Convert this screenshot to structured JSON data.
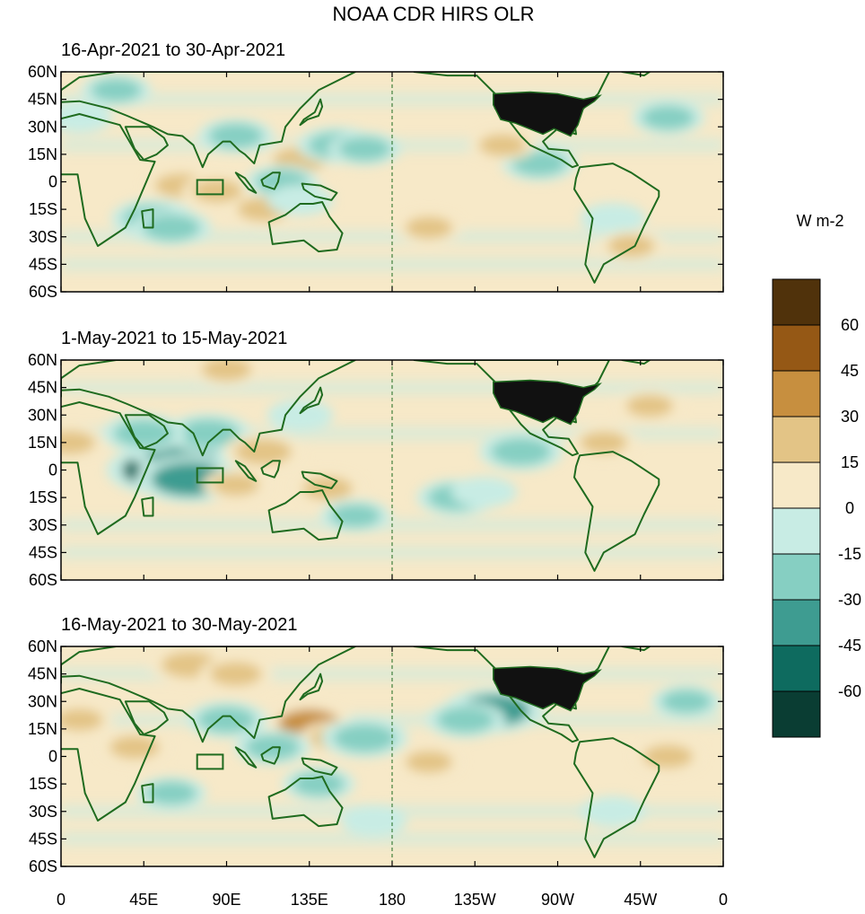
{
  "chart_data": {
    "type": "heatmap",
    "title": "NOAA CDR HIRS OLR",
    "units": "W m-2",
    "colors": {
      "land_outline": "#1f6b1f",
      "usa_fill": "#111111",
      "levels": [
        "#0a3d33",
        "#0e6b5f",
        "#3e9c91",
        "#86cfc2",
        "#c8ece4",
        "#f7e9c8",
        "#e3c486",
        "#c78f3f",
        "#955815",
        "#50320b"
      ]
    },
    "colorbar": {
      "labels": [
        "60",
        "45",
        "30",
        "15",
        "0",
        "-15",
        "-30",
        "-45",
        "-60"
      ]
    },
    "x_axis": {
      "ticks": [
        "0",
        "45E",
        "90E",
        "135E",
        "180",
        "135W",
        "90W",
        "45W",
        "0"
      ],
      "range": [
        0,
        360
      ]
    },
    "y_axis": {
      "ticks": [
        "60N",
        "45N",
        "30N",
        "15N",
        "0",
        "15S",
        "30S",
        "45S",
        "60S"
      ],
      "range": [
        60,
        -60
      ]
    },
    "dateline": 180,
    "panels": [
      {
        "subtitle": "16-Apr-2021 to 30-Apr-2021",
        "anomalies": [
          {
            "lon": 65,
            "lat": -2,
            "value": 20
          },
          {
            "lon": 85,
            "lat": -5,
            "value": 18
          },
          {
            "lon": 110,
            "lat": -15,
            "value": 20
          },
          {
            "lon": 130,
            "lat": 12,
            "value": 22
          },
          {
            "lon": 150,
            "lat": 20,
            "value": -25
          },
          {
            "lon": 165,
            "lat": 18,
            "value": -20
          },
          {
            "lon": 50,
            "lat": -20,
            "value": -28
          },
          {
            "lon": 60,
            "lat": -25,
            "value": -25
          },
          {
            "lon": 95,
            "lat": 25,
            "value": -22
          },
          {
            "lon": 120,
            "lat": 0,
            "value": -20
          },
          {
            "lon": 130,
            "lat": -10,
            "value": -15
          },
          {
            "lon": 260,
            "lat": 10,
            "value": -22
          },
          {
            "lon": 240,
            "lat": 20,
            "value": 15
          },
          {
            "lon": 200,
            "lat": -25,
            "value": 15
          },
          {
            "lon": 330,
            "lat": 35,
            "value": -20
          },
          {
            "lon": 10,
            "lat": 35,
            "value": -15
          },
          {
            "lon": 30,
            "lat": 50,
            "value": -18
          },
          {
            "lon": 300,
            "lat": -20,
            "value": -15
          },
          {
            "lon": 310,
            "lat": -35,
            "value": 15
          }
        ]
      },
      {
        "subtitle": "1-May-2021 to 15-May-2021",
        "anomalies": [
          {
            "lon": 55,
            "lat": 0,
            "value": -48
          },
          {
            "lon": 65,
            "lat": 10,
            "value": -40
          },
          {
            "lon": 70,
            "lat": -5,
            "value": -45
          },
          {
            "lon": 80,
            "lat": 20,
            "value": -30
          },
          {
            "lon": 45,
            "lat": 20,
            "value": -28
          },
          {
            "lon": 5,
            "lat": 15,
            "value": 18
          },
          {
            "lon": 110,
            "lat": 10,
            "value": 25
          },
          {
            "lon": 145,
            "lat": -10,
            "value": 18
          },
          {
            "lon": 95,
            "lat": -8,
            "value": 15
          },
          {
            "lon": 215,
            "lat": -15,
            "value": -25
          },
          {
            "lon": 230,
            "lat": -12,
            "value": -15
          },
          {
            "lon": 250,
            "lat": 10,
            "value": -28
          },
          {
            "lon": 295,
            "lat": 15,
            "value": 15
          },
          {
            "lon": 320,
            "lat": 35,
            "value": 15
          },
          {
            "lon": 160,
            "lat": -25,
            "value": -18
          },
          {
            "lon": 90,
            "lat": 55,
            "value": 18
          },
          {
            "lon": 130,
            "lat": 30,
            "value": -15
          }
        ]
      },
      {
        "subtitle": "16-May-2021 to 30-May-2021",
        "anomalies": [
          {
            "lon": 70,
            "lat": 50,
            "value": 25
          },
          {
            "lon": 95,
            "lat": 45,
            "value": 20
          },
          {
            "lon": 135,
            "lat": 18,
            "value": 30
          },
          {
            "lon": 150,
            "lat": 10,
            "value": 22
          },
          {
            "lon": 40,
            "lat": 5,
            "value": 18
          },
          {
            "lon": 10,
            "lat": 20,
            "value": 15
          },
          {
            "lon": 90,
            "lat": 20,
            "value": -25
          },
          {
            "lon": 115,
            "lat": 5,
            "value": -22
          },
          {
            "lon": 165,
            "lat": 10,
            "value": -30
          },
          {
            "lon": 235,
            "lat": 25,
            "value": -40
          },
          {
            "lon": 220,
            "lat": 20,
            "value": -25
          },
          {
            "lon": 200,
            "lat": -3,
            "value": 15
          },
          {
            "lon": 140,
            "lat": -15,
            "value": -20
          },
          {
            "lon": 330,
            "lat": 0,
            "value": 18
          },
          {
            "lon": 340,
            "lat": 30,
            "value": -18
          },
          {
            "lon": 300,
            "lat": -30,
            "value": -15
          },
          {
            "lon": 170,
            "lat": -35,
            "value": -15
          },
          {
            "lon": 60,
            "lat": -20,
            "value": -18
          }
        ]
      }
    ]
  }
}
